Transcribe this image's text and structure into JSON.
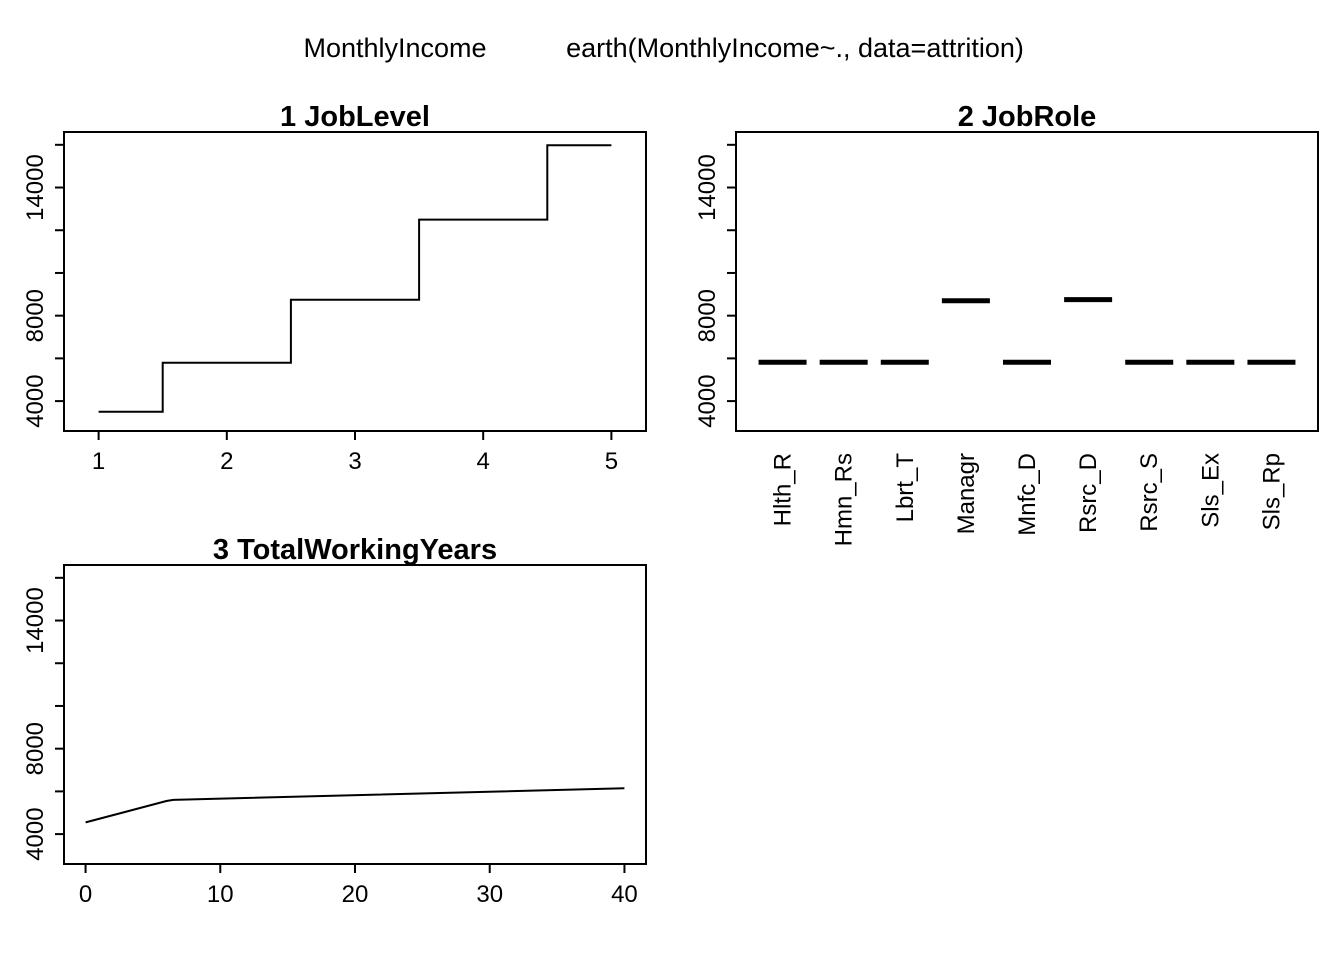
{
  "title": {
    "response": "MonthlyIncome",
    "model_call": "earth(MonthlyIncome~., data=attrition)"
  },
  "chart_data": [
    {
      "type": "line",
      "title": "1  JobLevel",
      "xlabel": "",
      "ylabel": "",
      "x_ticks": [
        1,
        2,
        3,
        4,
        5
      ],
      "y_ticks": [
        4000,
        8000,
        14000
      ],
      "xlim": [
        0.73,
        5.27
      ],
      "ylim": [
        2600,
        16600
      ],
      "step": true,
      "x": [
        1,
        1.5,
        1.5,
        2.5,
        2.5,
        3.5,
        3.5,
        4.5,
        4.5,
        5
      ],
      "y": [
        3500,
        3500,
        5800,
        5800,
        8750,
        8750,
        12500,
        12500,
        15980,
        15980
      ],
      "grid": false
    },
    {
      "type": "bar",
      "title": "2  JobRole",
      "xlabel": "",
      "ylabel": "",
      "categories": [
        "Hlth_R",
        "Hmn_Rs",
        "Lbrt_T",
        "Managr",
        "Mnfc_D",
        "Rsrc_D",
        "Rsrc_S",
        "Sls_Ex",
        "Sls_Rp"
      ],
      "values": [
        5820,
        5820,
        5820,
        8700,
        5820,
        8750,
        5820,
        5820,
        5820
      ],
      "y_ticks": [
        4000,
        8000,
        14000
      ],
      "ylim": [
        2600,
        16600
      ],
      "grid": false
    },
    {
      "type": "line",
      "title": "3  TotalWorkingYears",
      "xlabel": "",
      "ylabel": "",
      "x_ticks": [
        0,
        10,
        20,
        30,
        40
      ],
      "y_ticks": [
        4000,
        8000,
        14000
      ],
      "xlim": [
        -1.6,
        41.6
      ],
      "ylim": [
        2600,
        16600
      ],
      "x": [
        0,
        6,
        6.5,
        40
      ],
      "y": [
        4550,
        5550,
        5600,
        6150
      ],
      "grid": false
    }
  ]
}
